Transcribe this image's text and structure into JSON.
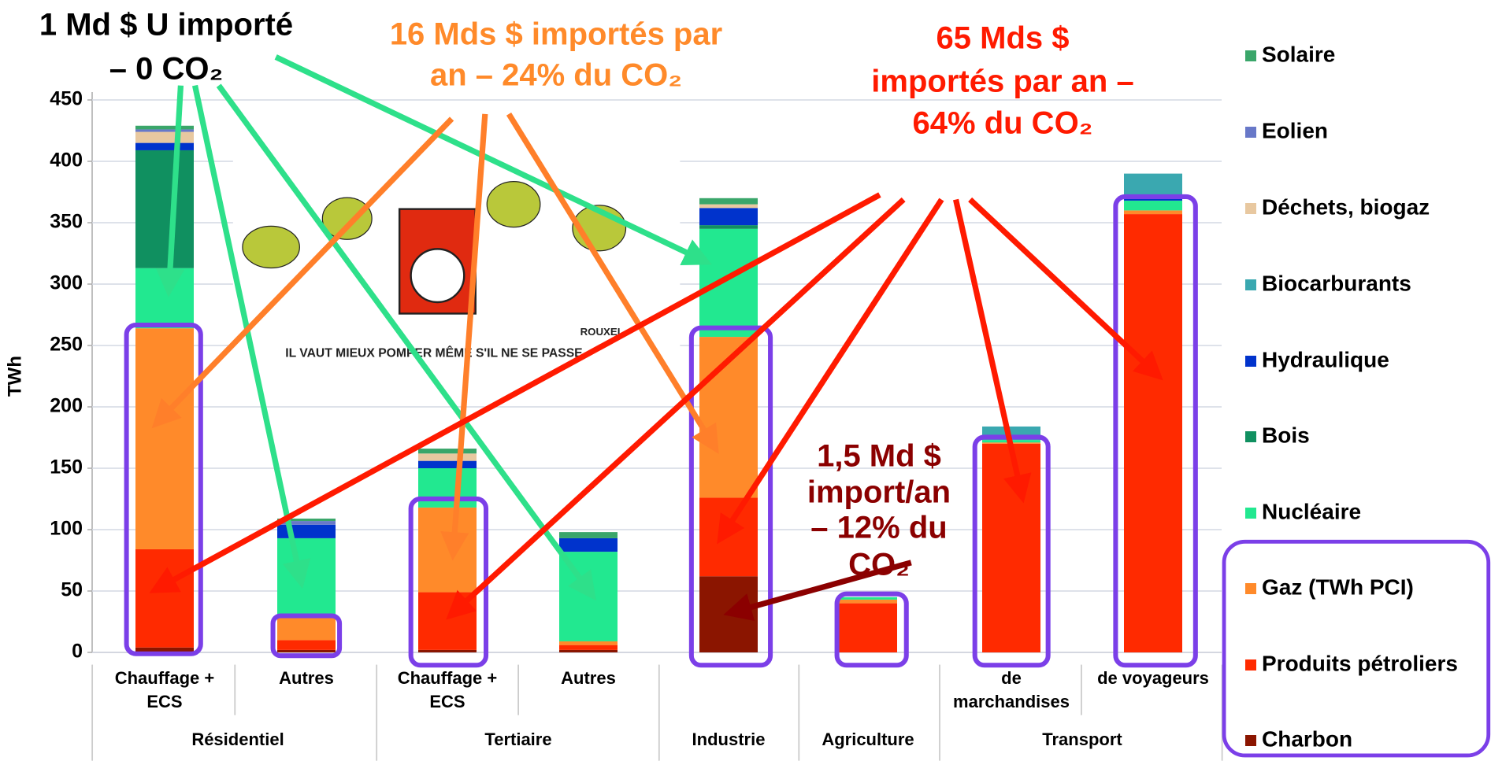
{
  "chart_data": {
    "type": "stacked_bar",
    "y_label": "TWh",
    "ylim": [
      0,
      450
    ],
    "yticks": [
      0,
      50,
      100,
      150,
      200,
      250,
      300,
      350,
      400,
      450
    ],
    "grid": true,
    "legend": "right",
    "categories": [
      "Chauffage + ECS",
      "Autres",
      "Chauffage + ECS",
      "Autres",
      null,
      null,
      "de marchandises",
      "de voyageurs"
    ],
    "groups": [
      "Résidentiel",
      "Tertiaire",
      "Industrie",
      "Agriculture",
      "Transport"
    ],
    "series": [
      {
        "name": "Charbon",
        "color": "#8b1500",
        "values": [
          4,
          2,
          2,
          2,
          62,
          0,
          0,
          0
        ]
      },
      {
        "name": "Produits pétroliers",
        "color": "#ff2a00",
        "values": [
          80,
          8,
          47,
          4,
          64,
          40,
          170,
          357
        ]
      },
      {
        "name": "Gaz (TWh PCI)",
        "color": "#ff8a2a",
        "values": [
          180,
          18,
          69,
          3,
          131,
          3,
          1,
          3
        ]
      },
      {
        "name": "Nucléaire",
        "color": "#22e890",
        "values": [
          49,
          65,
          32,
          73,
          88,
          2,
          2,
          8
        ]
      },
      {
        "name": "Bois",
        "color": "#109060",
        "values": [
          96,
          0,
          0,
          0,
          3,
          0,
          0,
          0
        ]
      },
      {
        "name": "Hydraulique",
        "color": "#0033cc",
        "values": [
          6,
          11,
          6,
          11,
          14,
          0,
          0,
          2
        ]
      },
      {
        "name": "Biocarburants",
        "color": "#3aa8b0",
        "values": [
          0,
          0,
          0,
          0,
          0,
          0,
          11,
          20
        ]
      },
      {
        "name": "Déchets, biogaz",
        "color": "#e8c8a0",
        "values": [
          9,
          0,
          6,
          0,
          3,
          0,
          0,
          0
        ]
      },
      {
        "name": "Eolien",
        "color": "#6878c8",
        "values": [
          2,
          3,
          0,
          0,
          0,
          0,
          0,
          0
        ]
      },
      {
        "name": "Solaire",
        "color": "#3aa66a",
        "values": [
          3,
          2,
          4,
          5,
          5,
          0,
          0,
          0
        ]
      }
    ],
    "annotations": [
      {
        "lines": [
          "1 Md $ U importé",
          "– 0 CO₂"
        ],
        "color": "#000000"
      },
      {
        "lines": [
          "16 Mds $ importés par",
          "an – 24% du CO₂"
        ],
        "color": "#ff8a2a"
      },
      {
        "lines": [
          "65 Mds $",
          "importés par an –",
          "64% du CO₂"
        ],
        "color": "#ff1a00"
      },
      {
        "lines": [
          "1,5 Md $",
          "import/an",
          "– 12% du",
          "CO₂"
        ],
        "color": "#8b0000"
      }
    ],
    "cartoon_caption": [
      "IL VAUT MIEUX POMPER MÊME S'IL NE SE PASSE",
      "ROUXEL"
    ]
  }
}
